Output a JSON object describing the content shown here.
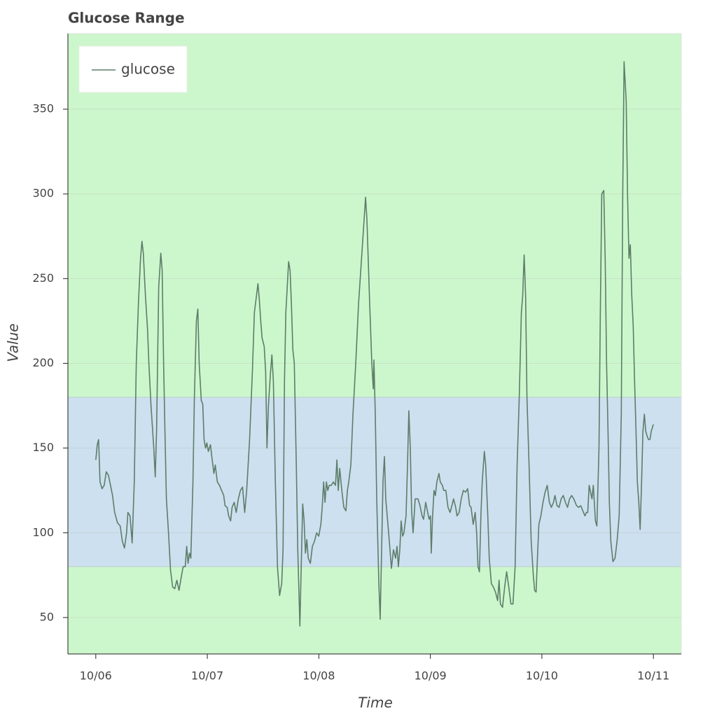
{
  "chart_data": {
    "type": "line",
    "title": "Glucose Range",
    "x_label": "Time",
    "y_label": "Value",
    "x": [
      0,
      0.013,
      0.025,
      0.038,
      0.056,
      0.075,
      0.094,
      0.113,
      0.132,
      0.15,
      0.169,
      0.194,
      0.219,
      0.238,
      0.257,
      0.276,
      0.288,
      0.307,
      0.326,
      0.345,
      0.363,
      0.382,
      0.401,
      0.414,
      0.426,
      0.445,
      0.464,
      0.476,
      0.495,
      0.52,
      0.533,
      0.545,
      0.564,
      0.583,
      0.595,
      0.608,
      0.62,
      0.633,
      0.652,
      0.67,
      0.689,
      0.708,
      0.727,
      0.746,
      0.764,
      0.783,
      0.802,
      0.815,
      0.827,
      0.84,
      0.852,
      0.871,
      0.884,
      0.902,
      0.915,
      0.927,
      0.946,
      0.959,
      0.971,
      0.984,
      0.996,
      1.009,
      1.028,
      1.04,
      1.059,
      1.071,
      1.09,
      1.109,
      1.128,
      1.147,
      1.159,
      1.178,
      1.191,
      1.209,
      1.222,
      1.241,
      1.259,
      1.278,
      1.297,
      1.316,
      1.335,
      1.353,
      1.379,
      1.404,
      1.422,
      1.441,
      1.454,
      1.466,
      1.479,
      1.491,
      1.51,
      1.523,
      1.535,
      1.548,
      1.567,
      1.579,
      1.592,
      1.61,
      1.629,
      1.648,
      1.667,
      1.679,
      1.692,
      1.704,
      1.729,
      1.742,
      1.754,
      1.767,
      1.78,
      1.798,
      1.811,
      1.83,
      1.842,
      1.855,
      1.867,
      1.88,
      1.892,
      1.905,
      1.924,
      1.942,
      1.961,
      1.98,
      1.999,
      2.018,
      2.03,
      2.043,
      2.055,
      2.068,
      2.08,
      2.093,
      2.112,
      2.13,
      2.149,
      2.162,
      2.174,
      2.187,
      2.206,
      2.224,
      2.243,
      2.256,
      2.268,
      2.287,
      2.306,
      2.331,
      2.356,
      2.381,
      2.406,
      2.419,
      2.431,
      2.456,
      2.475,
      2.488,
      2.494,
      2.506,
      2.519,
      2.538,
      2.55,
      2.563,
      2.575,
      2.588,
      2.6,
      2.613,
      2.632,
      2.651,
      2.669,
      2.688,
      2.701,
      2.713,
      2.726,
      2.738,
      2.751,
      2.763,
      2.782,
      2.795,
      2.807,
      2.82,
      2.832,
      2.845,
      2.864,
      2.889,
      2.907,
      2.926,
      2.939,
      2.958,
      2.976,
      2.989,
      3.001,
      3.008,
      3.02,
      3.033,
      3.045,
      3.058,
      3.077,
      3.089,
      3.108,
      3.12,
      3.139,
      3.158,
      3.177,
      3.189,
      3.208,
      3.227,
      3.239,
      3.258,
      3.277,
      3.296,
      3.315,
      3.334,
      3.352,
      3.365,
      3.384,
      3.402,
      3.415,
      3.427,
      3.44,
      3.453,
      3.465,
      3.484,
      3.496,
      3.515,
      3.528,
      3.547,
      3.565,
      3.584,
      3.603,
      3.616,
      3.628,
      3.647,
      3.666,
      3.684,
      3.703,
      3.722,
      3.741,
      3.76,
      3.778,
      3.797,
      3.816,
      3.828,
      3.841,
      3.854,
      3.866,
      3.885,
      3.904,
      3.923,
      3.935,
      3.948,
      3.96,
      3.973,
      3.991,
      4.01,
      4.029,
      4.048,
      4.067,
      4.085,
      4.104,
      4.117,
      4.136,
      4.154,
      4.173,
      4.192,
      4.211,
      4.23,
      4.248,
      4.267,
      4.286,
      4.311,
      4.33,
      4.349,
      4.367,
      4.386,
      4.399,
      4.411,
      4.424,
      4.449,
      4.461,
      4.48,
      4.493,
      4.512,
      4.524,
      4.537,
      4.555,
      4.568,
      4.58,
      4.593,
      4.605,
      4.618,
      4.637,
      4.656,
      4.674,
      4.693,
      4.712,
      4.725,
      4.737,
      4.756,
      4.768,
      4.781,
      4.793,
      4.806,
      4.819,
      4.831,
      4.844,
      4.856,
      4.869,
      4.881,
      4.894,
      4.906,
      4.919,
      4.931,
      4.944,
      4.956,
      4.969,
      4.981,
      5.0
    ],
    "series": [
      {
        "name": "glucose",
        "color": "#5e7d6a",
        "values": [
          143,
          152,
          155,
          130,
          126,
          128,
          136,
          134,
          128,
          122,
          112,
          106,
          104,
          95,
          91,
          100,
          112,
          110,
          94,
          130,
          200,
          235,
          262,
          272,
          265,
          240,
          220,
          200,
          175,
          150,
          133,
          160,
          245,
          265,
          255,
          200,
          160,
          120,
          100,
          78,
          68,
          67,
          72,
          66,
          73,
          80,
          80,
          92,
          82,
          88,
          85,
          130,
          180,
          225,
          232,
          200,
          178,
          176,
          155,
          150,
          153,
          148,
          152,
          145,
          135,
          140,
          130,
          128,
          125,
          122,
          116,
          115,
          110,
          107,
          115,
          118,
          112,
          120,
          125,
          127,
          112,
          125,
          155,
          195,
          230,
          240,
          247,
          238,
          225,
          215,
          210,
          195,
          150,
          175,
          195,
          205,
          190,
          130,
          80,
          63,
          70,
          90,
          190,
          230,
          260,
          255,
          235,
          208,
          200,
          140,
          90,
          45,
          80,
          117,
          108,
          88,
          96,
          85,
          82,
          92,
          95,
          100,
          98,
          105,
          115,
          130,
          118,
          130,
          125,
          128,
          128,
          130,
          128,
          143,
          125,
          138,
          125,
          115,
          113,
          125,
          130,
          140,
          170,
          200,
          235,
          260,
          285,
          298,
          285,
          235,
          200,
          185,
          202,
          170,
          120,
          70,
          49,
          90,
          130,
          145,
          120,
          110,
          95,
          79,
          90,
          85,
          92,
          80,
          90,
          107,
          98,
          100,
          110,
          140,
          172,
          150,
          113,
          100,
          120,
          120,
          116,
          110,
          108,
          118,
          112,
          108,
          110,
          88,
          110,
          125,
          122,
          130,
          135,
          130,
          128,
          125,
          125,
          115,
          112,
          115,
          120,
          115,
          110,
          112,
          120,
          125,
          124,
          126,
          116,
          115,
          105,
          112,
          100,
          80,
          77,
          110,
          130,
          148,
          140,
          110,
          85,
          70,
          68,
          65,
          60,
          72,
          58,
          56,
          68,
          77,
          68,
          58,
          58,
          80,
          140,
          180,
          230,
          240,
          264,
          240,
          180,
          140,
          95,
          75,
          66,
          65,
          85,
          105,
          110,
          118,
          124,
          128,
          118,
          115,
          118,
          122,
          116,
          115,
          120,
          122,
          118,
          115,
          120,
          122,
          120,
          116,
          115,
          116,
          113,
          110,
          112,
          112,
          128,
          120,
          128,
          107,
          104,
          150,
          230,
          300,
          302,
          260,
          200,
          160,
          118,
          95,
          83,
          85,
          95,
          110,
          170,
          300,
          378,
          355,
          300,
          262,
          270,
          240,
          222,
          190,
          160,
          130,
          118,
          102,
          130,
          160,
          170,
          160,
          157,
          155,
          155,
          160,
          164
        ]
      }
    ],
    "xlim": [
      -0.25,
      5.25
    ],
    "ylim": [
      28.5,
      394.6
    ],
    "xticks": [
      {
        "value": 0,
        "label": "10/06"
      },
      {
        "value": 1,
        "label": "10/07"
      },
      {
        "value": 2,
        "label": "10/08"
      },
      {
        "value": 3,
        "label": "10/09"
      },
      {
        "value": 4,
        "label": "10/10"
      },
      {
        "value": 5,
        "label": "10/11"
      }
    ],
    "yticks": [
      50,
      100,
      150,
      200,
      250,
      300,
      350
    ],
    "grid": true,
    "legend": "top_left",
    "background_color": "#ccf7cc",
    "target_range": [
      80,
      180
    ],
    "target_color": "#cce0ef"
  }
}
